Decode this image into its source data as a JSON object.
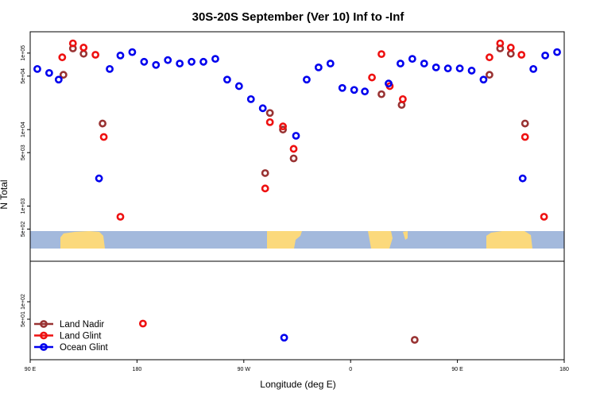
{
  "chart_data": {
    "type": "scatter",
    "title": "30S-20S September (Ver 10)   Inf to -Inf",
    "xlabel": "Longitude (deg E)",
    "ylabel": "N Total",
    "x_ticks": [
      {
        "value": 90,
        "label": "90 E"
      },
      {
        "value": 180,
        "label": "180"
      },
      {
        "value": 270,
        "label": "90 W"
      },
      {
        "value": 360,
        "label": "0"
      },
      {
        "value": 450,
        "label": "90 E"
      },
      {
        "value": 540,
        "label": "180"
      }
    ],
    "xlim": [
      90,
      540
    ],
    "upper_panel": {
      "yscale": "log",
      "ylim": [
        190,
        190000
      ],
      "y_ticks": [
        {
          "value": 500,
          "label": "5e+02"
        },
        {
          "value": 1000,
          "label": "1e+03"
        },
        {
          "value": 5000,
          "label": "5e+03"
        },
        {
          "value": 10000,
          "label": "1e+04"
        },
        {
          "value": 50000,
          "label": "5e+04"
        },
        {
          "value": 100000,
          "label": "1e+05"
        }
      ]
    },
    "lower_panel": {
      "yscale": "log",
      "ylim": [
        10,
        500
      ],
      "y_ticks": [
        {
          "value": 50,
          "label": "5e+01"
        },
        {
          "value": 100,
          "label": "1e+02"
        }
      ]
    },
    "series": [
      {
        "name": "Land Nadir",
        "color": "#993333",
        "points": [
          {
            "x": 118,
            "y": 52000
          },
          {
            "x": 126,
            "y": 115000
          },
          {
            "x": 135,
            "y": 98000
          },
          {
            "x": 151,
            "y": 12000
          },
          {
            "x": 288,
            "y": 2700
          },
          {
            "x": 292,
            "y": 16500
          },
          {
            "x": 303,
            "y": 10000
          },
          {
            "x": 312,
            "y": 4200
          },
          {
            "x": 386,
            "y": 29000
          },
          {
            "x": 403,
            "y": 21000
          },
          {
            "x": 477,
            "y": 52000
          },
          {
            "x": 486,
            "y": 115000
          },
          {
            "x": 495,
            "y": 98000
          },
          {
            "x": 507,
            "y": 12000
          }
        ],
        "lower_points": [
          {
            "x": 414,
            "y": 22
          }
        ]
      },
      {
        "name": "Land Glint",
        "color": "#ee1111",
        "points": [
          {
            "x": 117,
            "y": 88000
          },
          {
            "x": 126,
            "y": 134000
          },
          {
            "x": 135,
            "y": 118000
          },
          {
            "x": 145,
            "y": 95000
          },
          {
            "x": 152,
            "y": 8000
          },
          {
            "x": 166,
            "y": 725
          },
          {
            "x": 288,
            "y": 1700
          },
          {
            "x": 292,
            "y": 12500
          },
          {
            "x": 303,
            "y": 11000
          },
          {
            "x": 312,
            "y": 5600
          },
          {
            "x": 378,
            "y": 48000
          },
          {
            "x": 386,
            "y": 97000
          },
          {
            "x": 393,
            "y": 37000
          },
          {
            "x": 404,
            "y": 25000
          },
          {
            "x": 477,
            "y": 88000
          },
          {
            "x": 486,
            "y": 134000
          },
          {
            "x": 495,
            "y": 118000
          },
          {
            "x": 504,
            "y": 95000
          },
          {
            "x": 507,
            "y": 8000
          },
          {
            "x": 523,
            "y": 725
          }
        ],
        "lower_points": [
          {
            "x": 185,
            "y": 42
          }
        ]
      },
      {
        "name": "Ocean Glint",
        "color": "#0000ee",
        "points": [
          {
            "x": 96,
            "y": 62000
          },
          {
            "x": 106,
            "y": 55000
          },
          {
            "x": 114,
            "y": 45000
          },
          {
            "x": 148,
            "y": 2300
          },
          {
            "x": 157,
            "y": 62000
          },
          {
            "x": 166,
            "y": 93000
          },
          {
            "x": 176,
            "y": 103000
          },
          {
            "x": 186,
            "y": 77000
          },
          {
            "x": 196,
            "y": 70000
          },
          {
            "x": 206,
            "y": 81000
          },
          {
            "x": 216,
            "y": 73000
          },
          {
            "x": 226,
            "y": 77000
          },
          {
            "x": 236,
            "y": 77000
          },
          {
            "x": 246,
            "y": 84000
          },
          {
            "x": 256,
            "y": 45000
          },
          {
            "x": 266,
            "y": 37000
          },
          {
            "x": 276,
            "y": 25000
          },
          {
            "x": 286,
            "y": 19000
          },
          {
            "x": 314,
            "y": 8300
          },
          {
            "x": 323,
            "y": 45000
          },
          {
            "x": 333,
            "y": 65000
          },
          {
            "x": 343,
            "y": 73000
          },
          {
            "x": 353,
            "y": 35000
          },
          {
            "x": 363,
            "y": 33000
          },
          {
            "x": 372,
            "y": 31500
          },
          {
            "x": 392,
            "y": 40000
          },
          {
            "x": 402,
            "y": 73000
          },
          {
            "x": 412,
            "y": 84000
          },
          {
            "x": 422,
            "y": 73000
          },
          {
            "x": 432,
            "y": 65000
          },
          {
            "x": 442,
            "y": 63000
          },
          {
            "x": 452,
            "y": 63000
          },
          {
            "x": 462,
            "y": 59000
          },
          {
            "x": 472,
            "y": 45000
          },
          {
            "x": 505,
            "y": 2300
          },
          {
            "x": 514,
            "y": 62000
          },
          {
            "x": 524,
            "y": 93000
          },
          {
            "x": 534,
            "y": 103000
          }
        ],
        "lower_points": [
          {
            "x": 304,
            "y": 24
          }
        ]
      }
    ],
    "legend": {
      "position": "bottom-left of lower panel",
      "entries": [
        "Land Nadir",
        "Land Glint",
        "Ocean Glint"
      ]
    },
    "map_colors": {
      "ocean": "#a3b9dc",
      "land": "#fbd97c"
    }
  }
}
